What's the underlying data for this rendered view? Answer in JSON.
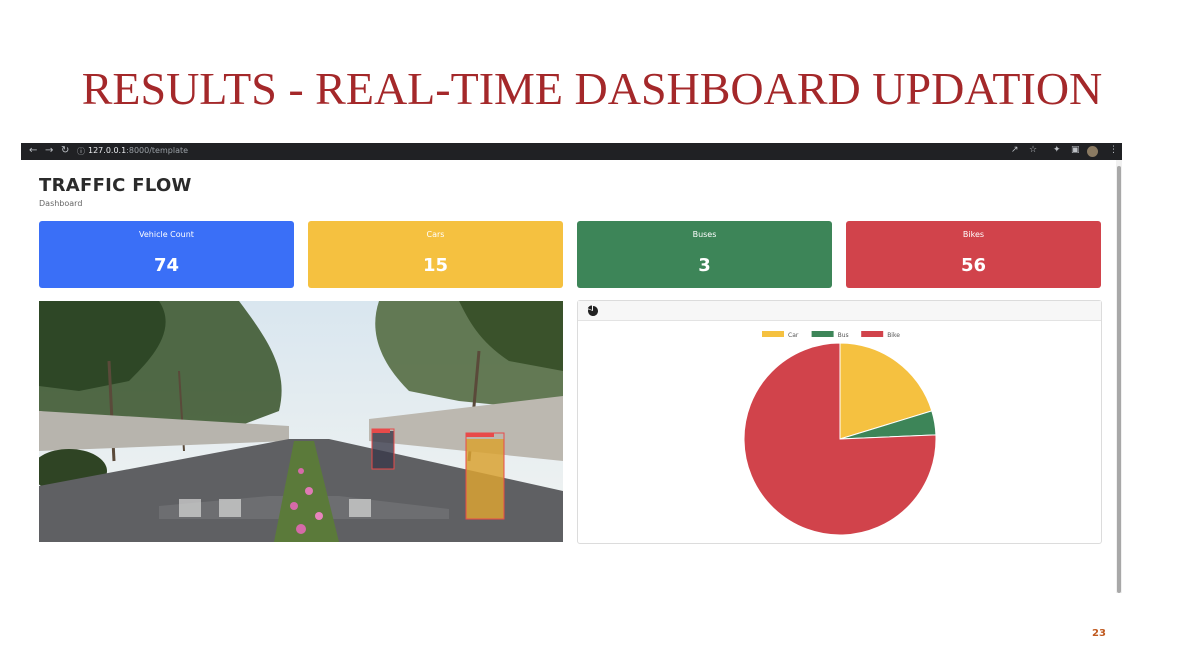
{
  "slide": {
    "title": "RESULTS - REAL-TIME DASHBOARD UPDATION",
    "page_number": "23"
  },
  "browser": {
    "url_host": "127.0.0.1",
    "url_path": ":8000/template",
    "nav_icons": [
      "back-icon",
      "forward-icon",
      "reload-icon",
      "info-icon"
    ],
    "toolbar_icons": [
      "share-icon",
      "star-icon",
      "extensions-icon",
      "sidepanel-icon",
      "profile-avatar",
      "menu-icon"
    ]
  },
  "page": {
    "title": "TRAFFIC FLOW",
    "subtitle": "Dashboard"
  },
  "cards": [
    {
      "label": "Vehicle Count",
      "value": "74",
      "color": "#3a6ff7"
    },
    {
      "label": "Cars",
      "value": "15",
      "color": "#f5c140"
    },
    {
      "label": "Buses",
      "value": "3",
      "color": "#3d8558"
    },
    {
      "label": "Bikes",
      "value": "56",
      "color": "#d1434b"
    }
  ],
  "chart_panel": {
    "header_icon": "pie-chart-icon"
  },
  "chart_data": {
    "type": "pie",
    "categories": [
      "Car",
      "Bus",
      "Bike"
    ],
    "values": [
      15,
      3,
      56
    ],
    "colors": [
      "#f5c140",
      "#3d8558",
      "#d1434b"
    ],
    "legend": "top"
  }
}
